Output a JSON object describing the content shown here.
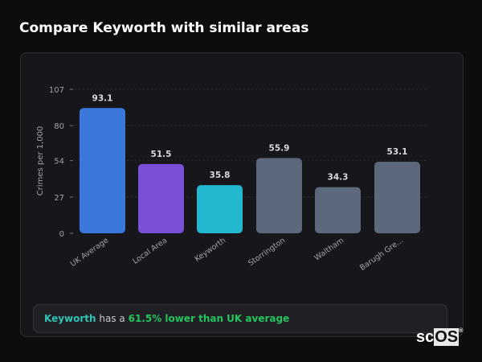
{
  "title": "Compare Keyworth with similar areas",
  "chart_data": {
    "type": "bar",
    "categories": [
      "UK Average",
      "Local Area",
      "Keyworth",
      "Storrington",
      "Waltham",
      "Barugh Gre..."
    ],
    "values": [
      93.1,
      51.5,
      35.8,
      55.9,
      34.3,
      53.1
    ],
    "data_labels": [
      "93.1",
      "51.5",
      "35.8",
      "55.9",
      "34.3",
      "53.1"
    ],
    "colors": [
      "#3a78db",
      "#7b4fd6",
      "#22b8cf",
      "#5c687c",
      "#5c687c",
      "#5c687c"
    ],
    "ylabel": "Crimes per 1,000",
    "yticks": [
      0,
      27,
      54,
      80,
      107
    ],
    "ylim": [
      0,
      107
    ],
    "grid": true,
    "legend": "none"
  },
  "banner": {
    "area": "Keyworth",
    "text": " has a ",
    "highlight": "61.5% lower than UK average"
  },
  "logo": {
    "text_a": "sc",
    "text_b": "OS",
    "mark": "®"
  }
}
